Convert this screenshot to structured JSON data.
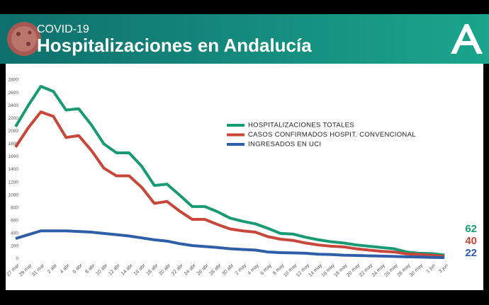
{
  "chart_data": {
    "type": "line",
    "title": "COVID-19",
    "subtitle": "Hospitalizaciones en Andalucía",
    "categories": [
      "27 mar",
      "29 mar",
      "31 mar",
      "2 abr",
      "4 abr",
      "6 abr",
      "8 abr",
      "10 abr",
      "12 abr",
      "14 abr",
      "16 abr",
      "18 abr",
      "20 abr",
      "22 abr",
      "24 abr",
      "26 abr",
      "28 abr",
      "30 abr",
      "2 may",
      "4 may",
      "6 may",
      "8 may",
      "10 may",
      "12 may",
      "14 may",
      "16 may",
      "18 may",
      "20 may",
      "22 may",
      "24 may",
      "26 may",
      "28 may",
      "30 may",
      "1 jun",
      "3 jun"
    ],
    "series": [
      {
        "name": "HOSPITALIZACIONES TOTALES",
        "color": "#1a9a73",
        "values": [
          2070,
          2400,
          2700,
          2620,
          2330,
          2350,
          2100,
          1800,
          1660,
          1660,
          1450,
          1150,
          1170,
          1000,
          820,
          820,
          740,
          640,
          590,
          550,
          480,
          400,
          390,
          340,
          300,
          270,
          250,
          220,
          200,
          180,
          160,
          110,
          90,
          85,
          62
        ]
      },
      {
        "name": "CASOS CONFIRMADOS HOSPIT. CONVENCIONAL",
        "color": "#c8463a",
        "values": [
          1750,
          2050,
          2300,
          2230,
          1900,
          1930,
          1700,
          1420,
          1300,
          1300,
          1120,
          870,
          900,
          750,
          620,
          620,
          540,
          470,
          440,
          420,
          350,
          310,
          290,
          250,
          220,
          200,
          190,
          160,
          140,
          120,
          110,
          80,
          70,
          60,
          40
        ]
      },
      {
        "name": "INGRESADOS EN UCI",
        "color": "#2f5ea8",
        "values": [
          320,
          380,
          440,
          440,
          440,
          430,
          420,
          400,
          380,
          360,
          330,
          300,
          280,
          240,
          210,
          195,
          180,
          160,
          150,
          140,
          110,
          100,
          95,
          90,
          75,
          70,
          60,
          55,
          50,
          45,
          40,
          35,
          30,
          25,
          22
        ]
      }
    ],
    "ylim": [
      0,
      2800
    ],
    "yticks": [
      0,
      200,
      400,
      600,
      800,
      1000,
      1200,
      1400,
      1600,
      1800,
      2000,
      2200,
      2400,
      2600,
      2800
    ],
    "grid": false
  }
}
